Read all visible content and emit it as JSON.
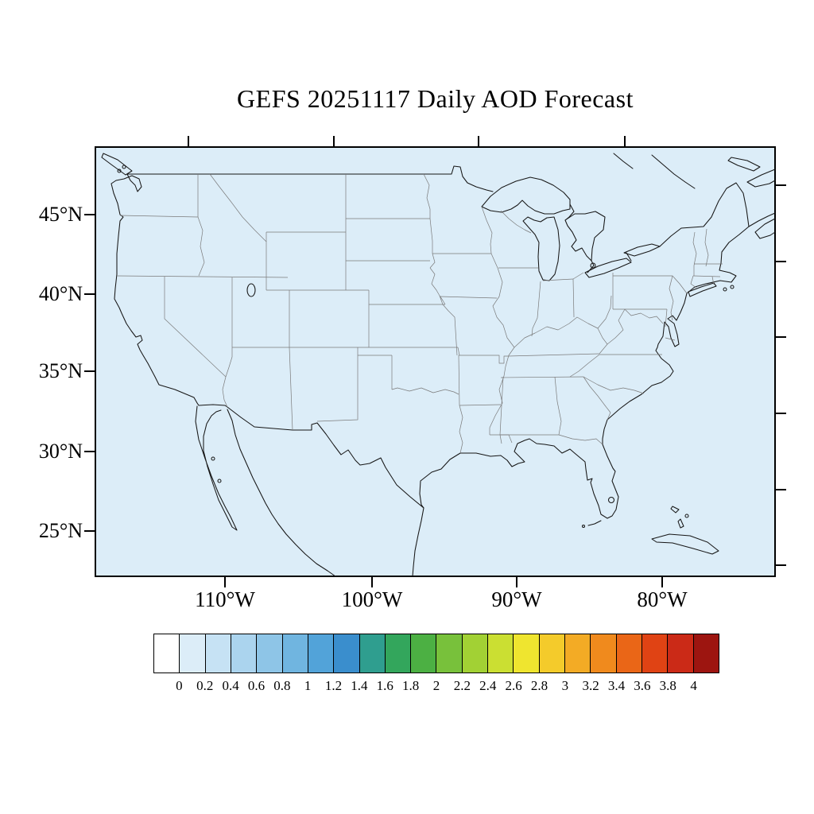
{
  "title": "GEFS 20251117 Daily AOD Forecast",
  "map": {
    "background_color": "#dcedf8",
    "frame_color": "#000000"
  },
  "y_axis": {
    "labels": [
      "45°N",
      "40°N",
      "35°N",
      "30°N",
      "25°N"
    ]
  },
  "x_axis": {
    "labels": [
      "110°W",
      "100°W",
      "90°W",
      "80°W"
    ]
  },
  "colorbar": {
    "labels": [
      "0",
      "0.2",
      "0.4",
      "0.6",
      "0.8",
      "1",
      "1.2",
      "1.4",
      "1.6",
      "1.8",
      "2",
      "2.2",
      "2.4",
      "2.6",
      "2.8",
      "3",
      "3.2",
      "3.4",
      "3.6",
      "3.8",
      "4"
    ],
    "colors": [
      "#ffffff",
      "#dcedf8",
      "#c6e2f4",
      "#abd4ee",
      "#8ec5e7",
      "#70b5e0",
      "#52a3d9",
      "#3a8ecd",
      "#2f9e8f",
      "#33a65c",
      "#4cb043",
      "#78c13b",
      "#a2d134",
      "#cbdf32",
      "#efe52f",
      "#f4cb2b",
      "#f3ab25",
      "#f08a1d",
      "#ea6617",
      "#e04314",
      "#cb2a17",
      "#9d1510"
    ]
  }
}
